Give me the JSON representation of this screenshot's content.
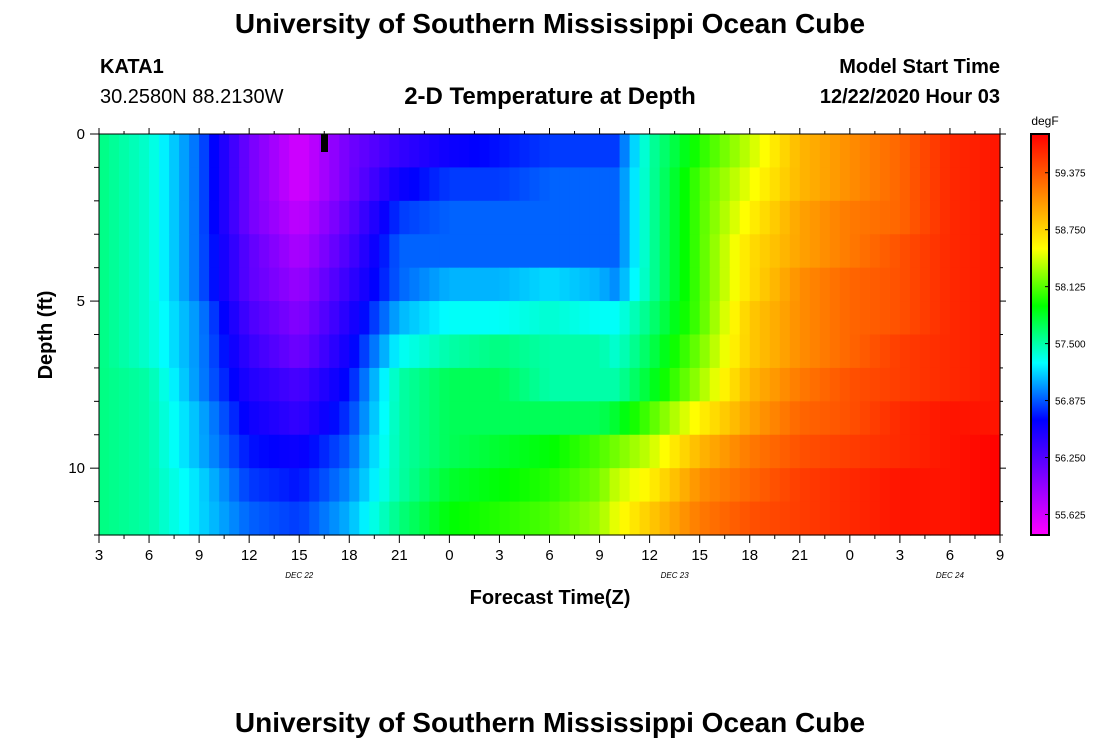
{
  "header": {
    "title": "University of Southern Mississippi Ocean Cube",
    "station": "KATA1",
    "coordinates": "30.2580N 88.2130W",
    "plot_title": "2-D Temperature at Depth",
    "model_start_label": "Model Start Time",
    "model_start_value": "12/22/2020 Hour 03"
  },
  "footer": {
    "title": "University of Southern Mississippi Ocean Cube"
  },
  "chart_data": {
    "type": "heatmap",
    "title": "2-D Temperature at Depth",
    "xlabel": "Forecast Time(Z)",
    "ylabel": "Depth (ft)",
    "x_tick_labels": [
      "3",
      "6",
      "9",
      "12",
      "15",
      "18",
      "21",
      "0",
      "3",
      "6",
      "9",
      "12",
      "15",
      "18",
      "21",
      "0",
      "3",
      "6",
      "9"
    ],
    "date_labels": [
      "DEC 22",
      "DEC 23",
      "DEC 24"
    ],
    "y_ticks": [
      0,
      5,
      10
    ],
    "ylim": [
      0,
      12
    ],
    "y_inverted": true,
    "colorbar": {
      "unit": "degF",
      "labels": [
        "59.375",
        "58.750",
        "58.125",
        "57.500",
        "56.875",
        "56.250",
        "55.625"
      ],
      "min": 55.4,
      "max": 59.8,
      "colors": [
        "#ff00ff",
        "#8000ff",
        "#0000ff",
        "#00ffff",
        "#00ff00",
        "#ffff00",
        "#ff8000",
        "#ff0000"
      ]
    },
    "x_hours": [
      0,
      3,
      6,
      9,
      12,
      15,
      18,
      21,
      24,
      27,
      30,
      31,
      33,
      36,
      39,
      42,
      45,
      48,
      51,
      54
    ],
    "depth_levels": [
      0,
      1,
      2,
      3,
      4,
      5,
      6,
      7,
      8,
      9,
      10,
      11
    ],
    "temperature_rows": [
      [
        57.6,
        57.4,
        56.9,
        56.1,
        55.6,
        56.1,
        56.4,
        56.6,
        56.7,
        56.8,
        56.8,
        56.8,
        57.5,
        58.0,
        58.4,
        58.9,
        59.1,
        59.3,
        59.6,
        59.7
      ],
      [
        57.6,
        57.4,
        56.9,
        56.1,
        55.6,
        56.1,
        56.6,
        56.8,
        56.8,
        56.9,
        56.9,
        56.9,
        57.5,
        58.1,
        58.5,
        58.9,
        59.1,
        59.3,
        59.6,
        59.7
      ],
      [
        57.6,
        57.4,
        56.9,
        56.1,
        55.7,
        56.2,
        56.8,
        56.9,
        56.9,
        56.9,
        56.9,
        56.9,
        57.5,
        58.1,
        58.6,
        59.0,
        59.2,
        59.3,
        59.6,
        59.7
      ],
      [
        57.6,
        57.4,
        56.9,
        56.2,
        55.8,
        56.3,
        56.9,
        56.9,
        56.9,
        56.9,
        56.9,
        56.9,
        57.5,
        58.1,
        58.7,
        59.0,
        59.2,
        59.4,
        59.6,
        59.7
      ],
      [
        57.6,
        57.4,
        56.9,
        56.2,
        55.9,
        56.4,
        56.9,
        57.1,
        57.1,
        57.2,
        57.1,
        57.0,
        57.5,
        58.1,
        58.7,
        59.1,
        59.3,
        59.4,
        59.6,
        59.7
      ],
      [
        57.6,
        57.4,
        57.0,
        56.3,
        56.0,
        56.5,
        57.1,
        57.3,
        57.3,
        57.4,
        57.3,
        57.3,
        57.6,
        58.1,
        58.8,
        59.1,
        59.3,
        59.4,
        59.6,
        59.7
      ],
      [
        57.6,
        57.4,
        57.0,
        56.4,
        56.1,
        56.6,
        57.3,
        57.5,
        57.6,
        57.5,
        57.5,
        57.4,
        57.7,
        58.2,
        58.8,
        59.1,
        59.3,
        59.5,
        59.6,
        59.7
      ],
      [
        57.6,
        57.5,
        57.0,
        56.5,
        56.3,
        56.7,
        57.5,
        57.7,
        57.7,
        57.5,
        57.5,
        57.5,
        57.8,
        58.3,
        58.9,
        59.2,
        59.4,
        59.5,
        59.6,
        59.7
      ],
      [
        57.6,
        57.5,
        57.1,
        56.6,
        56.4,
        56.8,
        57.5,
        57.7,
        57.7,
        57.7,
        57.7,
        57.8,
        58.1,
        58.6,
        59.0,
        59.3,
        59.4,
        59.6,
        59.7,
        59.7
      ],
      [
        57.6,
        57.5,
        57.1,
        56.7,
        56.6,
        56.9,
        57.5,
        57.7,
        57.8,
        57.9,
        58.1,
        58.2,
        58.4,
        58.9,
        59.2,
        59.4,
        59.5,
        59.6,
        59.7,
        59.8
      ],
      [
        57.6,
        57.5,
        57.2,
        56.8,
        56.7,
        57.0,
        57.5,
        57.8,
        57.9,
        58.0,
        58.2,
        58.4,
        58.6,
        59.1,
        59.3,
        59.5,
        59.6,
        59.7,
        59.7,
        59.8
      ],
      [
        57.6,
        57.5,
        57.2,
        56.9,
        56.8,
        57.1,
        57.6,
        57.9,
        58.0,
        58.1,
        58.3,
        58.5,
        58.8,
        59.2,
        59.4,
        59.5,
        59.6,
        59.7,
        59.7,
        59.8
      ]
    ]
  }
}
